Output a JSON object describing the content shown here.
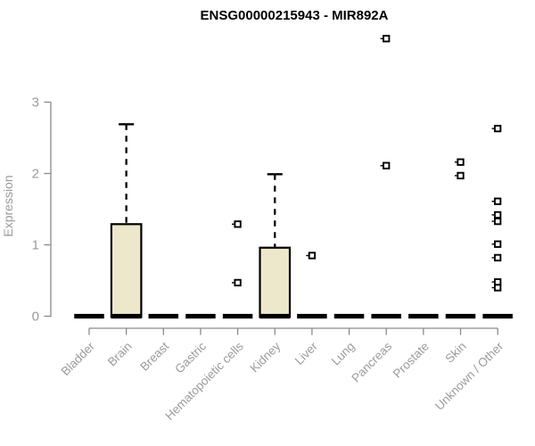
{
  "chart_data": {
    "type": "boxplot",
    "title": "ENSG00000215943 - MIR892A",
    "xlabel": "",
    "ylabel": "Expression",
    "ylim": [
      0,
      3
    ],
    "yticks": [
      "0",
      "1",
      "2",
      "3"
    ],
    "grid": false,
    "legend_position": "none",
    "categories": [
      "Bladder",
      "Brain",
      "Breast",
      "Gastric",
      "Hematopoietic cells",
      "Kidney",
      "Liver",
      "Lung",
      "Pancreas",
      "Prostate",
      "Skin",
      "Unknown / Other"
    ],
    "boxes": [
      {
        "category": "Bladder",
        "q1": 0,
        "median": 0,
        "q3": 0,
        "whisker_low": 0,
        "whisker_high": 0,
        "outliers": []
      },
      {
        "category": "Brain",
        "q1": 0,
        "median": 0,
        "q3": 1.29,
        "whisker_low": 0,
        "whisker_high": 2.69,
        "outliers": []
      },
      {
        "category": "Breast",
        "q1": 0,
        "median": 0,
        "q3": 0,
        "whisker_low": 0,
        "whisker_high": 0,
        "outliers": []
      },
      {
        "category": "Gastric",
        "q1": 0,
        "median": 0,
        "q3": 0,
        "whisker_low": 0,
        "whisker_high": 0,
        "outliers": []
      },
      {
        "category": "Hematopoietic cells",
        "q1": 0,
        "median": 0,
        "q3": 0,
        "whisker_low": 0,
        "whisker_high": 0,
        "outliers": [
          1.29,
          0.47
        ]
      },
      {
        "category": "Kidney",
        "q1": 0,
        "median": 0,
        "q3": 0.96,
        "whisker_low": 0,
        "whisker_high": 1.99,
        "outliers": []
      },
      {
        "category": "Liver",
        "q1": 0,
        "median": 0,
        "q3": 0,
        "whisker_low": 0,
        "whisker_high": 0,
        "outliers": [
          0.85
        ]
      },
      {
        "category": "Lung",
        "q1": 0,
        "median": 0,
        "q3": 0,
        "whisker_low": 0,
        "whisker_high": 0,
        "outliers": []
      },
      {
        "category": "Pancreas",
        "q1": 0,
        "median": 0,
        "q3": 0,
        "whisker_low": 0,
        "whisker_high": 0,
        "outliers": [
          3.89,
          2.11
        ]
      },
      {
        "category": "Prostate",
        "q1": 0,
        "median": 0,
        "q3": 0,
        "whisker_low": 0,
        "whisker_high": 0,
        "outliers": []
      },
      {
        "category": "Skin",
        "q1": 0,
        "median": 0,
        "q3": 0,
        "whisker_low": 0,
        "whisker_high": 0,
        "outliers": [
          2.16,
          1.97
        ]
      },
      {
        "category": "Unknown / Other",
        "q1": 0,
        "median": 0,
        "q3": 0,
        "whisker_low": 0,
        "whisker_high": 0,
        "outliers": [
          2.63,
          1.61,
          1.42,
          1.33,
          1.01,
          0.82,
          0.48,
          0.4
        ]
      }
    ],
    "colors": {
      "background": "#FFFFFF",
      "box_fill": "#EDE8CC",
      "box_stroke": "#000000",
      "whisker": "#000000",
      "outlier": "#000000",
      "axis": "#8A8A8A",
      "tick_label": "#9B9B9B",
      "title": "#000000"
    }
  }
}
